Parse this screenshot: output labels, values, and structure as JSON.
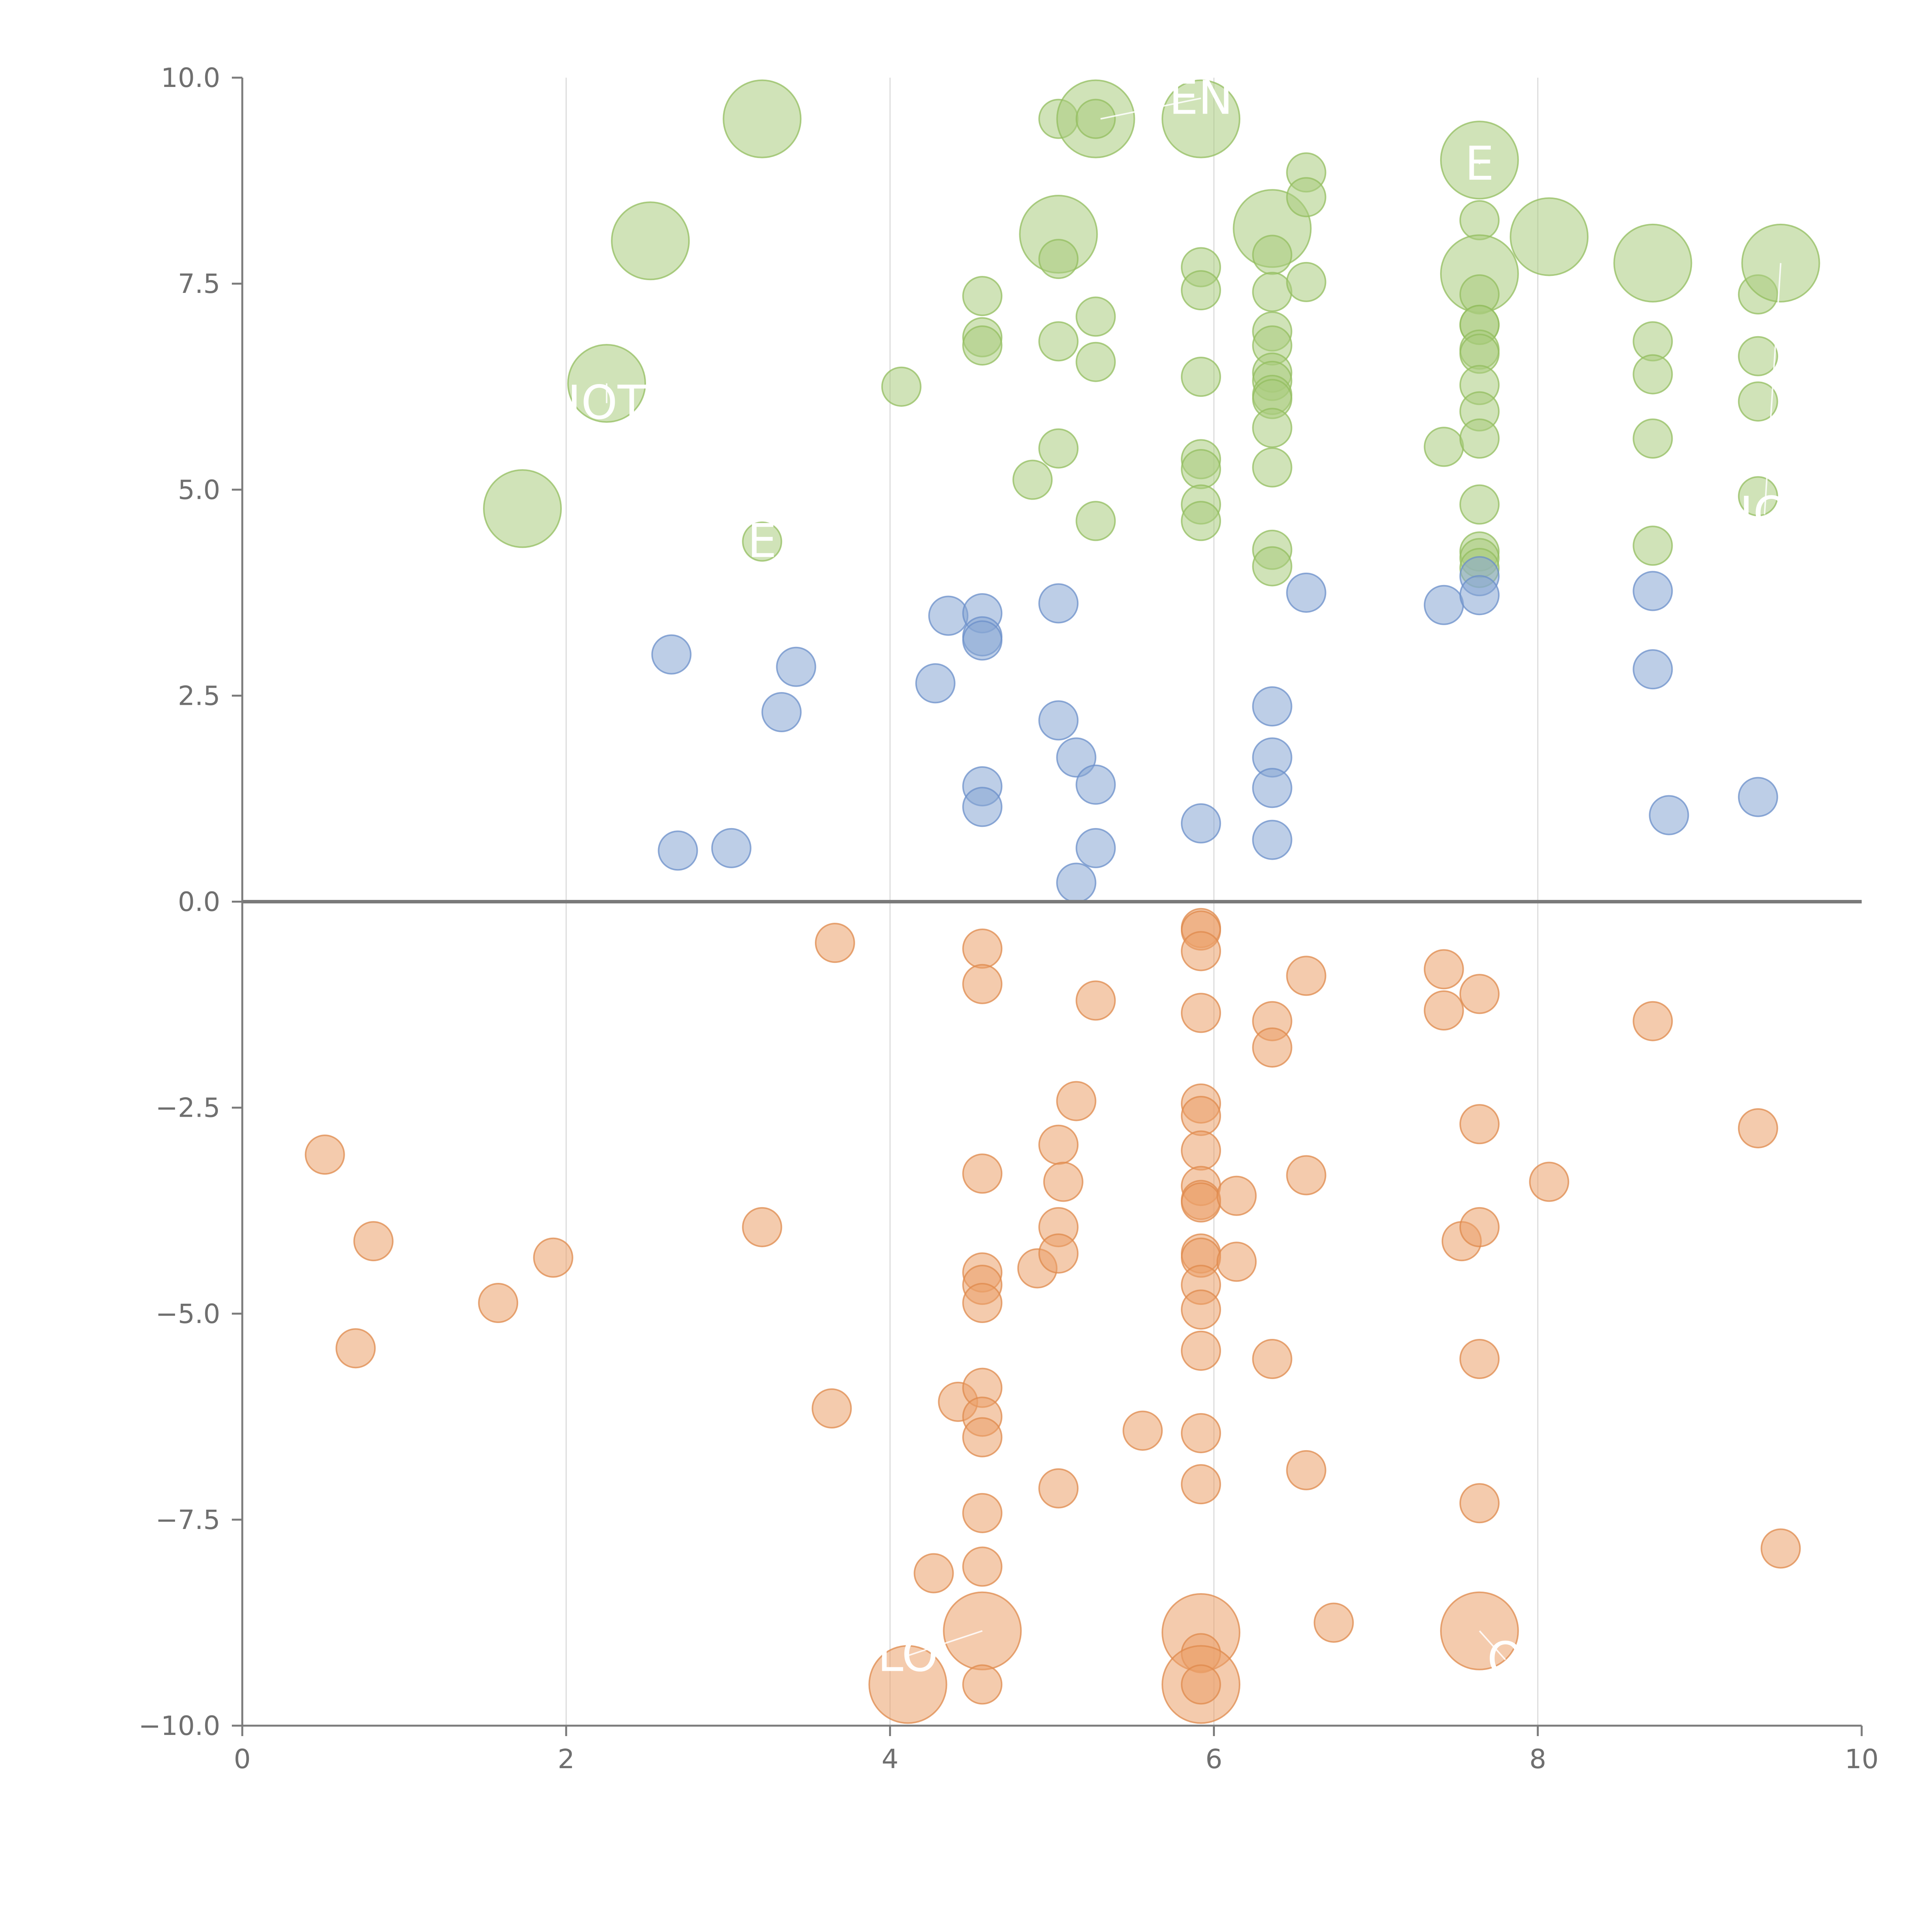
{
  "chart_data": {
    "type": "scatter",
    "title": "",
    "xlabel": "",
    "ylabel": "",
    "xlim": [
      0,
      10
    ],
    "ylim": [
      -10,
      10
    ],
    "grid": "vertical",
    "legend": "none",
    "x_ticks": [
      0,
      2,
      4,
      6,
      8,
      10
    ],
    "x_tick_labels": [
      "0",
      "2",
      "4",
      "6",
      "8",
      "10"
    ],
    "y_ticks": [
      -10,
      -7.5,
      -5,
      -2.5,
      0,
      2.5,
      5,
      7.5,
      10
    ],
    "y_tick_labels": [
      "−10.0",
      "−7.5",
      "−5.0",
      "−2.5",
      "0.0",
      "2.5",
      "5.0",
      "7.5",
      "10.0"
    ],
    "colors": {
      "green": "#a9cc7e",
      "green_edge": "#93bd5f",
      "blue": "#87a6d4",
      "blue_edge": "#6b8fc9",
      "orange": "#eba06a",
      "orange_edge": "#df8a4c",
      "axis": "#7b7b7b",
      "grid": "#dcdcdc",
      "zero_line": "#7a7a7a",
      "tick_label": "#6f6f6f",
      "annotation": "#ffffff"
    },
    "series": [
      {
        "name": "green",
        "color_key": "green",
        "points": [
          [
            1.73,
            4.77,
            "l"
          ],
          [
            2.25,
            6.29,
            "l"
          ],
          [
            2.52,
            8.02,
            "l"
          ],
          [
            3.21,
            9.5,
            "l"
          ],
          [
            3.21,
            4.37,
            "s"
          ],
          [
            4.07,
            6.25,
            "s"
          ],
          [
            4.57,
            7.35,
            "s"
          ],
          [
            4.57,
            6.85,
            "s"
          ],
          [
            4.57,
            6.75,
            "s"
          ],
          [
            4.88,
            5.12,
            "s"
          ],
          [
            5.04,
            9.5,
            "s"
          ],
          [
            5.04,
            8.1,
            "l"
          ],
          [
            5.04,
            7.8,
            "s"
          ],
          [
            5.04,
            6.8,
            "s"
          ],
          [
            5.04,
            5.5,
            "s"
          ],
          [
            5.27,
            9.5,
            "l"
          ],
          [
            5.27,
            9.5,
            "s"
          ],
          [
            5.27,
            7.1,
            "s"
          ],
          [
            5.27,
            6.55,
            "s"
          ],
          [
            5.27,
            4.62,
            "s"
          ],
          [
            5.92,
            9.5,
            "l"
          ],
          [
            5.92,
            7.7,
            "s"
          ],
          [
            5.92,
            7.42,
            "s"
          ],
          [
            5.92,
            6.37,
            "s"
          ],
          [
            5.92,
            5.37,
            "s"
          ],
          [
            5.92,
            5.25,
            "s"
          ],
          [
            5.92,
            4.82,
            "s"
          ],
          [
            5.92,
            4.62,
            "s"
          ],
          [
            6.36,
            8.17,
            "l"
          ],
          [
            6.36,
            7.85,
            "s"
          ],
          [
            6.36,
            7.4,
            "s"
          ],
          [
            6.36,
            6.92,
            "s"
          ],
          [
            6.36,
            6.75,
            "s"
          ],
          [
            6.36,
            6.42,
            "s"
          ],
          [
            6.36,
            6.32,
            "s"
          ],
          [
            6.36,
            6.15,
            "s"
          ],
          [
            6.36,
            6.1,
            "s"
          ],
          [
            6.36,
            5.75,
            "s"
          ],
          [
            6.36,
            5.27,
            "s"
          ],
          [
            6.36,
            4.27,
            "s"
          ],
          [
            6.36,
            4.07,
            "s"
          ],
          [
            6.57,
            8.85,
            "s"
          ],
          [
            6.57,
            8.55,
            "s"
          ],
          [
            6.57,
            7.52,
            "s"
          ],
          [
            7.42,
            5.52,
            "s"
          ],
          [
            7.64,
            9.0,
            "l"
          ],
          [
            7.64,
            8.27,
            "s"
          ],
          [
            7.64,
            7.62,
            "l"
          ],
          [
            7.64,
            7.37,
            "s"
          ],
          [
            7.64,
            7.0,
            "s"
          ],
          [
            7.64,
            7.0,
            "s"
          ],
          [
            7.64,
            6.7,
            "s"
          ],
          [
            7.64,
            6.65,
            "s"
          ],
          [
            7.64,
            6.27,
            "s"
          ],
          [
            7.64,
            5.95,
            "s"
          ],
          [
            7.64,
            5.62,
            "s"
          ],
          [
            7.64,
            4.82,
            "s"
          ],
          [
            7.64,
            4.25,
            "s"
          ],
          [
            7.64,
            4.17,
            "s"
          ],
          [
            7.64,
            4.05,
            "s"
          ],
          [
            8.07,
            8.07,
            "l"
          ],
          [
            8.71,
            7.75,
            "l"
          ],
          [
            8.71,
            6.8,
            "s"
          ],
          [
            8.71,
            6.4,
            "s"
          ],
          [
            8.71,
            5.62,
            "s"
          ],
          [
            8.71,
            4.32,
            "s"
          ],
          [
            9.36,
            7.37,
            "s"
          ],
          [
            9.36,
            6.62,
            "s"
          ],
          [
            9.36,
            6.07,
            "s"
          ],
          [
            9.36,
            4.92,
            "s"
          ],
          [
            9.5,
            7.75,
            "l"
          ]
        ]
      },
      {
        "name": "blue",
        "color_key": "blue",
        "points": [
          [
            2.65,
            3.0,
            "s"
          ],
          [
            2.69,
            0.62,
            "s"
          ],
          [
            3.02,
            0.65,
            "s"
          ],
          [
            3.33,
            2.3,
            "s"
          ],
          [
            3.42,
            2.85,
            "s"
          ],
          [
            4.28,
            2.65,
            "s"
          ],
          [
            4.36,
            3.47,
            "s"
          ],
          [
            4.57,
            3.5,
            "s"
          ],
          [
            4.57,
            3.22,
            "s"
          ],
          [
            4.57,
            3.17,
            "s"
          ],
          [
            4.57,
            1.4,
            "s"
          ],
          [
            4.57,
            1.15,
            "s"
          ],
          [
            5.04,
            3.62,
            "s"
          ],
          [
            5.04,
            2.2,
            "s"
          ],
          [
            5.15,
            1.75,
            "s"
          ],
          [
            5.15,
            0.23,
            "s"
          ],
          [
            5.27,
            1.42,
            "s"
          ],
          [
            5.27,
            0.65,
            "s"
          ],
          [
            5.92,
            0.95,
            "s"
          ],
          [
            6.36,
            2.37,
            "s"
          ],
          [
            6.36,
            1.75,
            "s"
          ],
          [
            6.36,
            1.38,
            "s"
          ],
          [
            6.36,
            0.75,
            "s"
          ],
          [
            6.57,
            3.75,
            "s"
          ],
          [
            7.42,
            3.6,
            "s"
          ],
          [
            7.64,
            3.95,
            "s"
          ],
          [
            7.64,
            3.72,
            "s"
          ],
          [
            8.71,
            3.77,
            "s"
          ],
          [
            8.71,
            2.82,
            "s"
          ],
          [
            8.81,
            1.05,
            "s"
          ],
          [
            9.36,
            1.27,
            "s"
          ]
        ]
      },
      {
        "name": "orange",
        "color_key": "orange",
        "points": [
          [
            0.51,
            -3.07,
            "s"
          ],
          [
            0.7,
            -5.42,
            "s"
          ],
          [
            0.81,
            -4.12,
            "s"
          ],
          [
            1.58,
            -4.87,
            "s"
          ],
          [
            1.92,
            -4.32,
            "s"
          ],
          [
            3.21,
            -3.95,
            "s"
          ],
          [
            3.64,
            -6.15,
            "s"
          ],
          [
            3.66,
            -0.5,
            "s"
          ],
          [
            4.11,
            -9.5,
            "l"
          ],
          [
            4.27,
            -8.15,
            "s"
          ],
          [
            4.42,
            -6.07,
            "s"
          ],
          [
            4.57,
            -0.57,
            "s"
          ],
          [
            4.57,
            -1.0,
            "s"
          ],
          [
            4.57,
            -3.3,
            "s"
          ],
          [
            4.57,
            -4.5,
            "s"
          ],
          [
            4.57,
            -4.65,
            "s"
          ],
          [
            4.57,
            -4.87,
            "s"
          ],
          [
            4.57,
            -5.9,
            "s"
          ],
          [
            4.57,
            -6.25,
            "s"
          ],
          [
            4.57,
            -6.5,
            "s"
          ],
          [
            4.57,
            -7.42,
            "s"
          ],
          [
            4.57,
            -8.07,
            "s"
          ],
          [
            4.57,
            -8.85,
            "l"
          ],
          [
            4.57,
            -9.5,
            "s"
          ],
          [
            4.91,
            -4.45,
            "s"
          ],
          [
            5.04,
            -2.95,
            "s"
          ],
          [
            5.04,
            -3.95,
            "s"
          ],
          [
            5.04,
            -4.27,
            "s"
          ],
          [
            5.04,
            -7.12,
            "s"
          ],
          [
            5.07,
            -3.4,
            "s"
          ],
          [
            5.15,
            -2.42,
            "s"
          ],
          [
            5.27,
            -1.2,
            "s"
          ],
          [
            5.56,
            -6.42,
            "s"
          ],
          [
            5.92,
            -0.32,
            "s"
          ],
          [
            5.92,
            -0.35,
            "s"
          ],
          [
            5.92,
            -0.6,
            "s"
          ],
          [
            5.92,
            -1.35,
            "s"
          ],
          [
            5.92,
            -2.45,
            "s"
          ],
          [
            5.92,
            -2.6,
            "s"
          ],
          [
            5.92,
            -3.02,
            "s"
          ],
          [
            5.92,
            -3.45,
            "s"
          ],
          [
            5.92,
            -3.62,
            "s"
          ],
          [
            5.92,
            -3.65,
            "s"
          ],
          [
            5.92,
            -4.27,
            "s"
          ],
          [
            5.92,
            -4.32,
            "s"
          ],
          [
            5.92,
            -4.65,
            "s"
          ],
          [
            5.92,
            -4.95,
            "s"
          ],
          [
            5.92,
            -5.45,
            "s"
          ],
          [
            5.92,
            -6.45,
            "s"
          ],
          [
            5.92,
            -7.07,
            "s"
          ],
          [
            5.92,
            -8.87,
            "l"
          ],
          [
            5.92,
            -9.12,
            "s"
          ],
          [
            5.92,
            -9.5,
            "l"
          ],
          [
            5.92,
            -9.5,
            "s"
          ],
          [
            6.14,
            -3.57,
            "s"
          ],
          [
            6.14,
            -4.37,
            "s"
          ],
          [
            6.36,
            -1.45,
            "s"
          ],
          [
            6.36,
            -1.77,
            "s"
          ],
          [
            6.36,
            -5.55,
            "s"
          ],
          [
            6.57,
            -0.9,
            "s"
          ],
          [
            6.57,
            -3.32,
            "s"
          ],
          [
            6.57,
            -6.9,
            "s"
          ],
          [
            6.74,
            -8.75,
            "s"
          ],
          [
            7.42,
            -0.82,
            "s"
          ],
          [
            7.42,
            -1.32,
            "s"
          ],
          [
            7.53,
            -4.12,
            "s"
          ],
          [
            7.64,
            -1.12,
            "s"
          ],
          [
            7.64,
            -2.7,
            "s"
          ],
          [
            7.64,
            -3.95,
            "s"
          ],
          [
            7.64,
            -5.55,
            "s"
          ],
          [
            7.64,
            -7.3,
            "s"
          ],
          [
            7.64,
            -8.85,
            "l"
          ],
          [
            8.07,
            -3.4,
            "s"
          ],
          [
            8.71,
            -1.45,
            "s"
          ],
          [
            9.36,
            -2.75,
            "s"
          ],
          [
            9.5,
            -7.85,
            "s"
          ]
        ]
      }
    ],
    "annotations": [
      {
        "text": "EN",
        "x": 5.92,
        "y": 9.75,
        "px": 5.3,
        "py": 9.5
      },
      {
        "text": "E",
        "x": 7.64,
        "y": 8.95,
        "px": 7.64,
        "py": 9.0
      },
      {
        "text": "IOT",
        "x": 2.25,
        "y": 6.05,
        "px": 2.25,
        "py": 6.29
      },
      {
        "text": "E",
        "x": 3.21,
        "y": 4.37,
        "px": 3.21,
        "py": 4.37
      },
      {
        "text": "LO",
        "x": 4.11,
        "y": -9.15,
        "px": 4.57,
        "py": -8.85
      },
      {
        "text": "O",
        "x": 7.8,
        "y": -9.2,
        "px": 7.64,
        "py": -8.85
      },
      {
        "text": "IO",
        "x": 9.4,
        "y": 4.7,
        "px": 9.5,
        "py": 7.75
      }
    ]
  }
}
